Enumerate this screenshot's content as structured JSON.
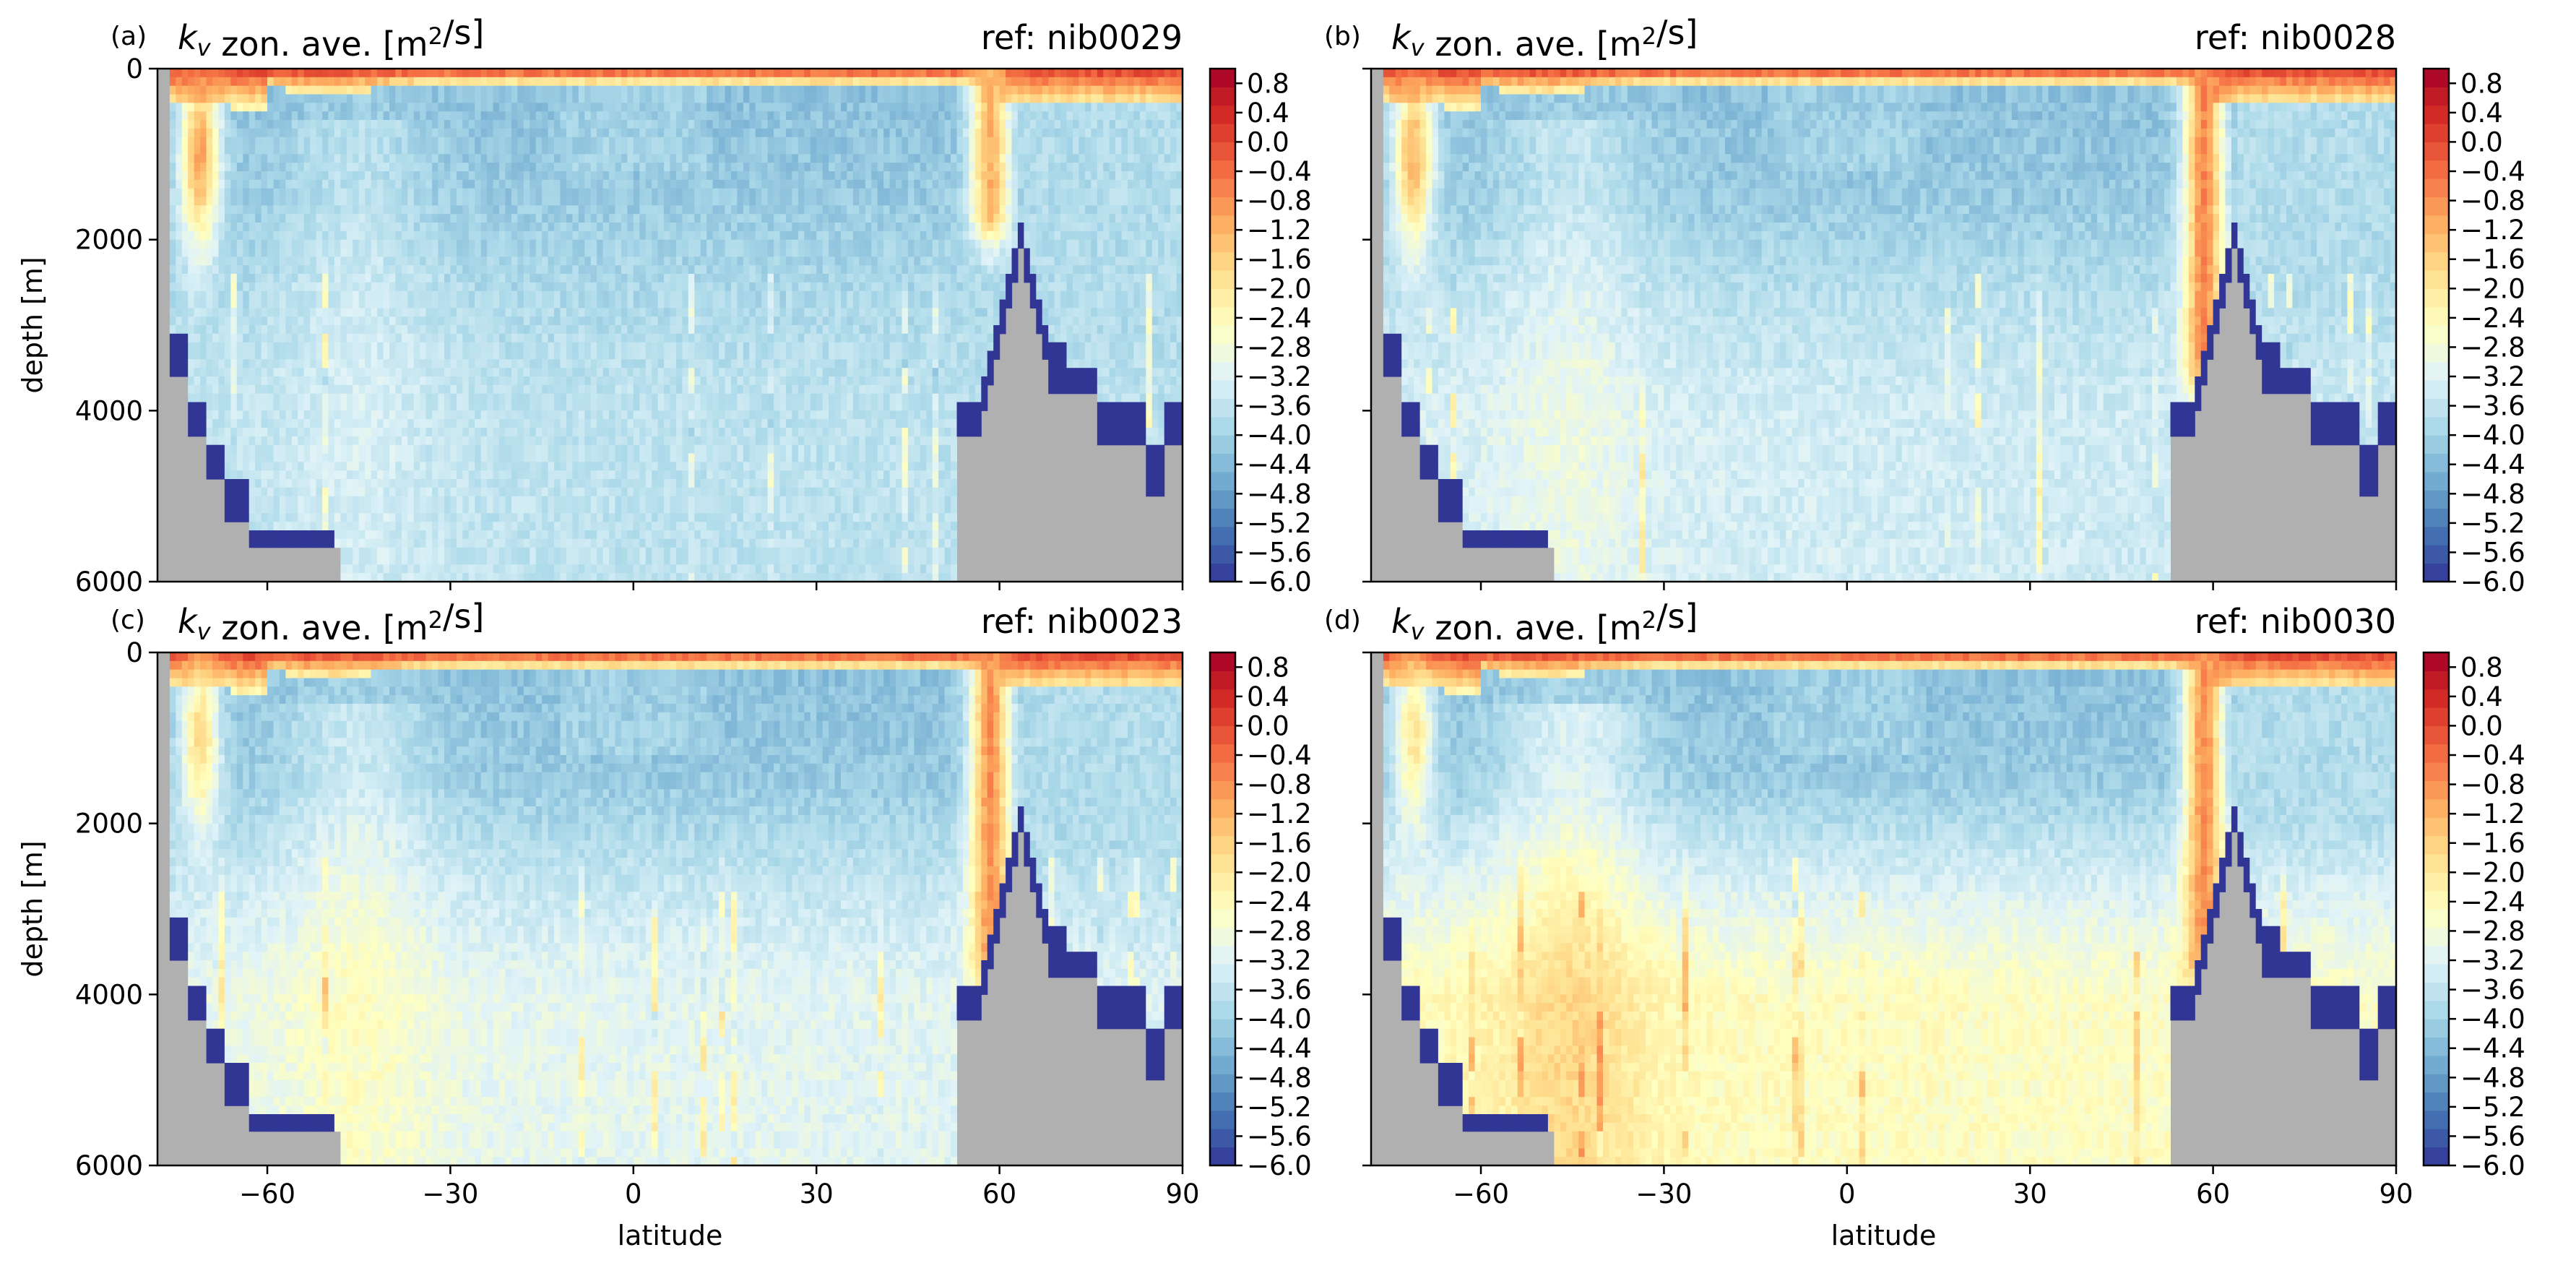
{
  "chart_data": [
    {
      "type": "heatmap",
      "panel_label": "(a)",
      "title": "k_v zon. ave. [m²/s]",
      "ref": "ref: nib0029",
      "xlabel": "",
      "ylabel": "depth [m]",
      "xlim": [
        -78,
        90
      ],
      "ylim": [
        6000,
        0
      ],
      "xticks": [
        -60,
        -30,
        0,
        30,
        60,
        90
      ],
      "xtick_labels": [],
      "yticks": [
        0,
        2000,
        4000,
        6000
      ],
      "ytick_labels": [
        "0",
        "2000",
        "4000",
        "6000"
      ],
      "colorbar": {
        "vmin": -6.0,
        "vmax": 1.0,
        "ticks": [
          "0.8",
          "0.4",
          "0.0",
          "−0.4",
          "−0.8",
          "−1.2",
          "−1.6",
          "−2.0",
          "−2.4",
          "−2.8",
          "−3.2",
          "−3.6",
          "−4.0",
          "−4.4",
          "−4.8",
          "−5.2",
          "−5.6",
          "−6.0"
        ]
      },
      "scenario": {
        "deep_n": -3.7,
        "deep_s": -3.6,
        "south_plume": -1.0,
        "north_plume": -1.2,
        "north_plume_depth": 1600,
        "midlat_mix": -3.3
      }
    },
    {
      "type": "heatmap",
      "panel_label": "(b)",
      "title": "k_v zon. ave. [m²/s]",
      "ref": "ref: nib0028",
      "xlabel": "",
      "ylabel": "",
      "xlim": [
        -78,
        90
      ],
      "ylim": [
        6000,
        0
      ],
      "xticks": [
        -60,
        -30,
        0,
        30,
        60,
        90
      ],
      "xtick_labels": [],
      "yticks": [
        0,
        2000,
        4000,
        6000
      ],
      "ytick_labels": [],
      "colorbar": {
        "vmin": -6.0,
        "vmax": 1.0,
        "ticks": [
          "0.8",
          "0.4",
          "0.0",
          "−0.4",
          "−0.8",
          "−1.2",
          "−1.6",
          "−2.0",
          "−2.4",
          "−2.8",
          "−3.2",
          "−3.6",
          "−4.0",
          "−4.4",
          "−4.8",
          "−5.2",
          "−5.6",
          "−6.0"
        ]
      },
      "scenario": {
        "deep_n": -3.5,
        "deep_s": -3.3,
        "south_plume": -1.2,
        "north_plume": -0.7,
        "north_plume_depth": 3400,
        "midlat_mix": -3.1
      }
    },
    {
      "type": "heatmap",
      "panel_label": "(c)",
      "title": "k_v zon. ave. [m²/s]",
      "ref": "ref: nib0023",
      "xlabel": "latitude",
      "ylabel": "depth [m]",
      "xlim": [
        -78,
        90
      ],
      "ylim": [
        6000,
        0
      ],
      "xticks": [
        -60,
        -30,
        0,
        30,
        60,
        90
      ],
      "xtick_labels": [
        "−60",
        "−30",
        "0",
        "30",
        "60",
        "90"
      ],
      "yticks": [
        0,
        2000,
        4000,
        6000
      ],
      "ytick_labels": [
        "0",
        "2000",
        "4000",
        "6000"
      ],
      "colorbar": {
        "vmin": -6.0,
        "vmax": 1.0,
        "ticks": [
          "0.8",
          "0.4",
          "0.0",
          "−0.4",
          "−0.8",
          "−1.2",
          "−1.6",
          "−2.0",
          "−2.4",
          "−2.8",
          "−3.2",
          "−3.6",
          "−4.0",
          "−4.4",
          "−4.8",
          "−5.2",
          "−5.6",
          "−6.0"
        ]
      },
      "scenario": {
        "deep_n": -3.2,
        "deep_s": -3.0,
        "south_plume": -1.8,
        "north_plume": -0.8,
        "north_plume_depth": 3500,
        "midlat_mix": -2.9
      }
    },
    {
      "type": "heatmap",
      "panel_label": "(d)",
      "title": "k_v zon. ave. [m²/s]",
      "ref": "ref: nib0030",
      "xlabel": "latitude",
      "ylabel": "",
      "xlim": [
        -78,
        90
      ],
      "ylim": [
        6000,
        0
      ],
      "xticks": [
        -60,
        -30,
        0,
        30,
        60,
        90
      ],
      "xtick_labels": [
        "−60",
        "−30",
        "0",
        "30",
        "60",
        "90"
      ],
      "yticks": [
        0,
        2000,
        4000,
        6000
      ],
      "ytick_labels": [],
      "colorbar": {
        "vmin": -6.0,
        "vmax": 1.0,
        "ticks": [
          "0.8",
          "0.4",
          "0.0",
          "−0.4",
          "−0.8",
          "−1.2",
          "−1.6",
          "−2.0",
          "−2.4",
          "−2.8",
          "−3.2",
          "−3.6",
          "−4.0",
          "−4.4",
          "−4.8",
          "−5.2",
          "−5.6",
          "−6.0"
        ]
      },
      "scenario": {
        "deep_n": -2.6,
        "deep_s": -2.4,
        "south_plume": -2.0,
        "north_plume": -0.8,
        "north_plume_depth": 3500,
        "midlat_mix": -2.5
      }
    }
  ],
  "colors": {
    "land": "#b0b0b0",
    "colormap": "RdYlBu_r",
    "colormap_stops": [
      "#313695",
      "#4575b4",
      "#74add1",
      "#abd9e9",
      "#e0f3f8",
      "#ffffbf",
      "#fee090",
      "#fdae61",
      "#f46d43",
      "#d73027",
      "#a50026"
    ]
  }
}
